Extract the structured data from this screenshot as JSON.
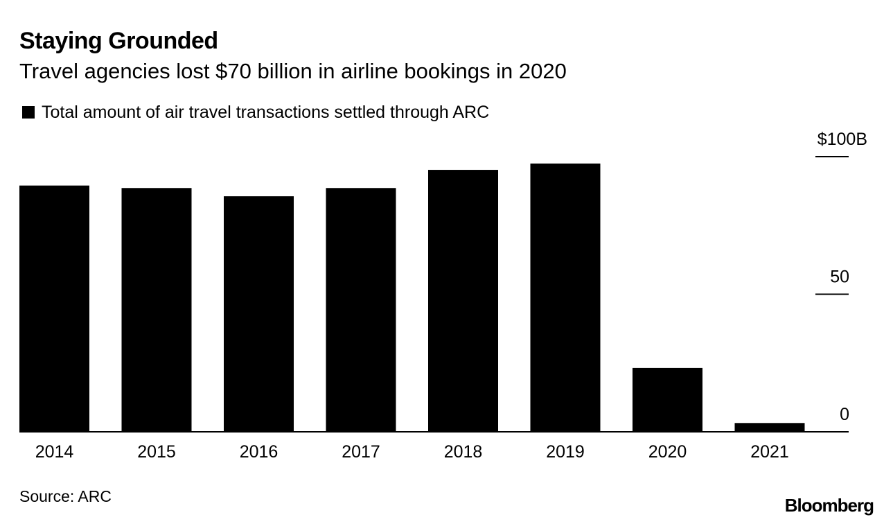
{
  "header": {
    "title": "Staying Grounded",
    "subtitle": "Travel agencies lost $70 billion in airline bookings in 2020"
  },
  "legend": {
    "label": "Total amount of air travel transactions settled through ARC"
  },
  "footer": {
    "source": "Source: ARC",
    "brand": "Bloomberg"
  },
  "colors": {
    "bar": "#000000",
    "axis": "#000000",
    "background": "#ffffff"
  },
  "chart_data": {
    "type": "bar",
    "categories": [
      "2014",
      "2015",
      "2016",
      "2017",
      "2018",
      "2019",
      "2020",
      "2021"
    ],
    "series": [
      {
        "name": "Total amount of air travel transactions settled through ARC",
        "values": [
          89.5,
          88.6,
          85.6,
          88.6,
          95.2,
          97.5,
          23.2,
          3.2
        ]
      }
    ],
    "ylim": [
      0,
      100
    ],
    "yticks": [
      0,
      50,
      100
    ],
    "ytick_labels": [
      "0",
      "50",
      "$100B"
    ],
    "y_axis_position": "right",
    "grid": false,
    "legend_position": "top-left"
  }
}
